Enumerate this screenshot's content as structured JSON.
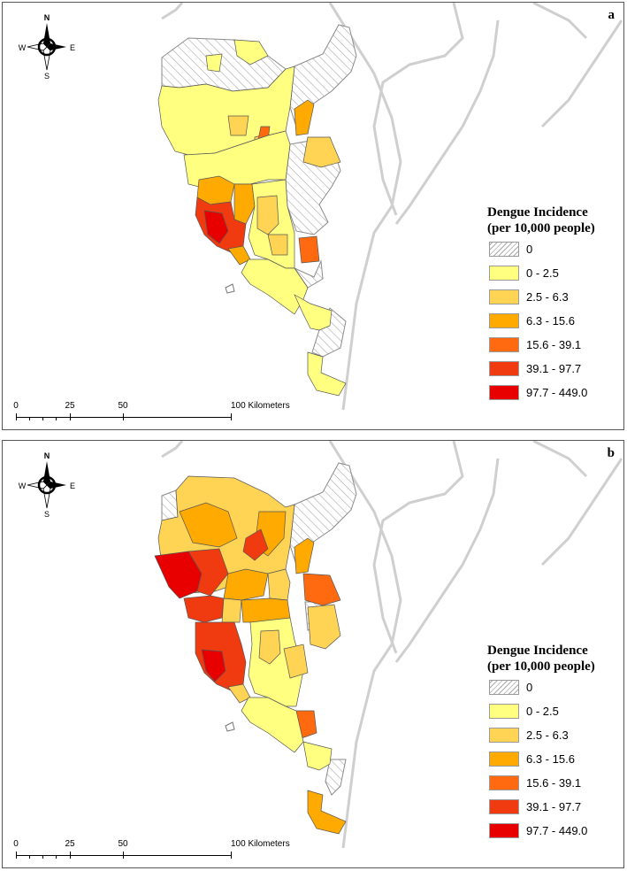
{
  "panels": [
    {
      "id": "a",
      "label": "a",
      "legend_title_line1": "Dengue Incidence",
      "legend_title_line2": "(per 10,000 people)",
      "scale": {
        "labels": [
          "0",
          "25",
          "50",
          "100 Kilometers"
        ]
      },
      "compass": {
        "n": "N",
        "s": "S",
        "e": "E",
        "w": "W"
      }
    },
    {
      "id": "b",
      "label": "b",
      "legend_title_line1": "Dengue Incidence",
      "legend_title_line2": "(per 10,000 people)",
      "scale": {
        "labels": [
          "0",
          "25",
          "50",
          "100 Kilometers"
        ]
      },
      "compass": {
        "n": "N",
        "s": "S",
        "e": "E",
        "w": "W"
      }
    }
  ],
  "legend_classes": [
    {
      "label": "0",
      "color": "hatch"
    },
    {
      "label": "0 - 2.5",
      "color": "#ffff80"
    },
    {
      "label": "2.5 - 6.3",
      "color": "#ffd454"
    },
    {
      "label": "6.3 - 15.6",
      "color": "#ffaa00"
    },
    {
      "label": "15.6 - 39.1",
      "color": "#ff6a10"
    },
    {
      "label": "39.1 - 97.7",
      "color": "#f03a10"
    },
    {
      "label": "97.7 - 449.0",
      "color": "#e80000"
    }
  ]
}
